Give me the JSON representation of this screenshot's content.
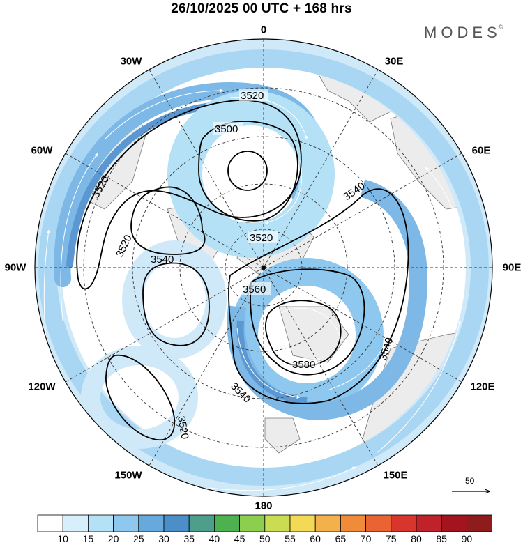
{
  "title": "26/10/2025  00 UTC  + 168 hrs",
  "brand": {
    "name": "MODES",
    "mark": "©"
  },
  "longitude_labels": {
    "n": "0",
    "ne30": "30E",
    "ne60": "60E",
    "e": "90E",
    "se120": "120E",
    "se150": "150E",
    "s": "180",
    "sw150": "150W",
    "sw120": "120W",
    "w": "90W",
    "nw60": "60W",
    "nw30": "30W"
  },
  "contour_labels": [
    "3520",
    "3500",
    "3520",
    "3520",
    "3540",
    "3520",
    "3540",
    "3560",
    "3580",
    "3540",
    "3540",
    "3520"
  ],
  "reference_vector": {
    "label": "50"
  },
  "colorbar": {
    "ticks": [
      "10",
      "15",
      "20",
      "25",
      "30",
      "35",
      "40",
      "45",
      "50",
      "55",
      "60",
      "65",
      "70",
      "75",
      "80",
      "85",
      "90"
    ],
    "colors": [
      "#ffffff",
      "#d6effb",
      "#b5e1f7",
      "#8ec8ee",
      "#67a9dd",
      "#4b8ec8",
      "#4e9e8c",
      "#4cb14e",
      "#8ccf4f",
      "#c9dc52",
      "#f3da55",
      "#f2b14a",
      "#ef8b39",
      "#ea6332",
      "#d8352c",
      "#c0222a",
      "#a4141f",
      "#8e1c1c"
    ]
  },
  "colors": {
    "land": "#ececec",
    "wind_light": "#cfe9f8",
    "wind_mid": "#a9d7f3",
    "wind_strong": "#7db8e6",
    "wind_max": "#5b98d2"
  }
}
